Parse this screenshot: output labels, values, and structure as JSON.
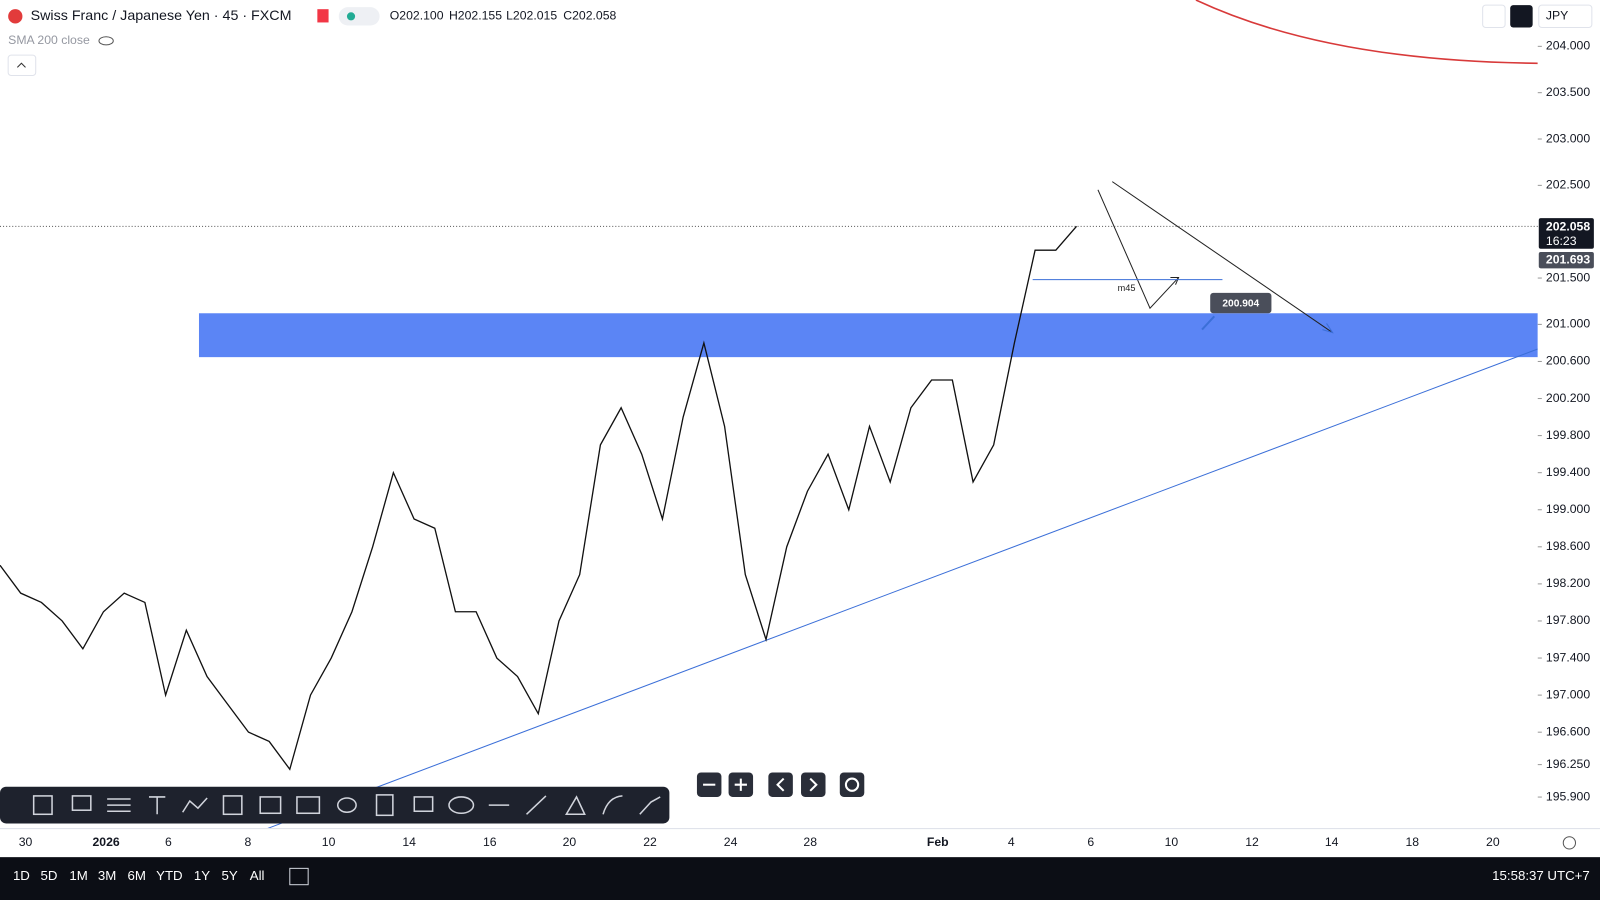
{
  "header": {
    "symbol": "Swiss Franc / Japanese Yen · 45 · FXCM",
    "ohlc": [
      "O202.100",
      "H202.155",
      "L202.015",
      "C202.058"
    ],
    "indicator": "SMA 200 close",
    "currency": "JPY"
  },
  "chart": {
    "type": "line",
    "close": [
      198.4,
      198.1,
      198.0,
      197.8,
      197.5,
      197.9,
      198.1,
      198.0,
      197.0,
      197.7,
      197.2,
      196.9,
      196.6,
      196.5,
      196.2,
      197.0,
      197.4,
      197.9,
      198.6,
      199.4,
      198.9,
      198.8,
      197.9,
      197.9,
      197.4,
      197.2,
      196.8,
      197.8,
      198.3,
      199.7,
      200.1,
      199.6,
      198.9,
      200.0,
      200.8,
      199.9,
      198.3,
      197.6,
      198.6,
      199.2,
      199.6,
      199.0,
      199.9,
      199.3,
      200.1,
      200.4,
      200.4,
      199.3,
      199.7,
      200.8,
      201.8,
      201.8,
      202.058
    ],
    "ylim": [
      195.56,
      204.5
    ],
    "yticks": [
      {
        "value": 204,
        "label": "204.000"
      },
      {
        "value": 203.5,
        "label": "203.500"
      },
      {
        "value": 203,
        "label": "203.000"
      },
      {
        "value": 202.5,
        "label": "202.500"
      },
      {
        "value": 201.5,
        "label": "201.500"
      },
      {
        "value": 201,
        "label": "201.000"
      },
      {
        "value": 200.6,
        "label": "200.600"
      },
      {
        "value": 200.2,
        "label": "200.200"
      },
      {
        "value": 199.8,
        "label": "199.800"
      },
      {
        "value": 199.4,
        "label": "199.400"
      },
      {
        "value": 199,
        "label": "199.000"
      },
      {
        "value": 198.6,
        "label": "198.600"
      },
      {
        "value": 198.2,
        "label": "198.200"
      },
      {
        "value": 197.8,
        "label": "197.800"
      },
      {
        "value": 197.4,
        "label": "197.400"
      },
      {
        "value": 197,
        "label": "197.000"
      },
      {
        "value": 196.6,
        "label": "196.600"
      },
      {
        "value": 196.25,
        "label": "196.250"
      },
      {
        "value": 195.9,
        "label": "195.900"
      }
    ],
    "last_price": {
      "value": 202.058,
      "label": "202.058"
    },
    "countdown": "16:23",
    "sma_price": {
      "value": 201.693,
      "label": "201.693"
    },
    "xticks": [
      "30",
      "2026",
      "6",
      "8",
      "10",
      "14",
      "16",
      "20",
      "22",
      "24",
      "28",
      "Feb",
      "4",
      "6",
      "10",
      "12",
      "14",
      "18",
      "20"
    ],
    "annotations": {
      "target": "200.904",
      "timeframe": "m45"
    }
  },
  "footer": {
    "ranges": [
      "1D",
      "5D",
      "1M",
      "3M",
      "6M",
      "YTD",
      "1Y",
      "5Y",
      "All"
    ],
    "clock": "15:58:37 UTC+7"
  }
}
